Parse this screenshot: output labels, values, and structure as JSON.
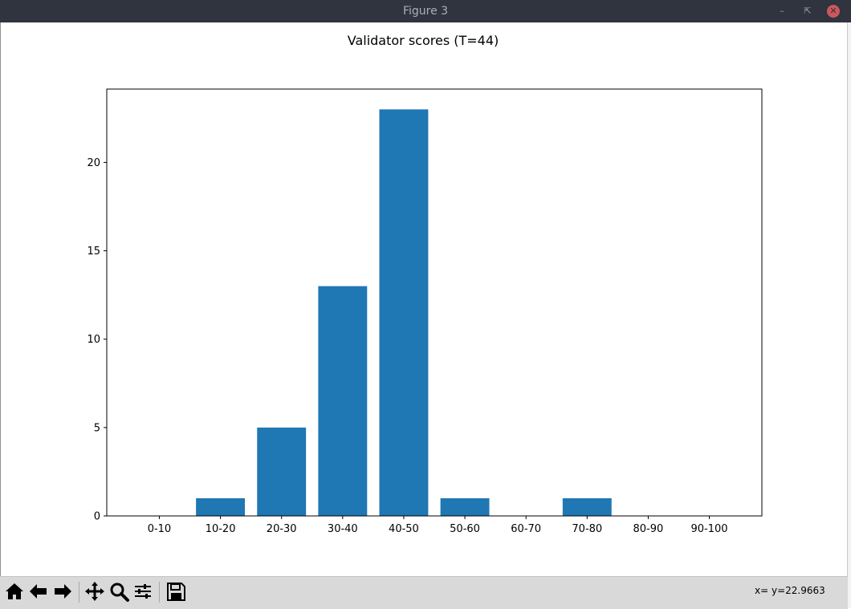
{
  "window": {
    "title": "Figure 3",
    "titlebar_color": "#2f343f",
    "close_color": "#cc575d"
  },
  "toolbar": {
    "buttons": [
      "home-icon",
      "back-arrow-icon",
      "forward-arrow-icon",
      "pan-icon",
      "zoom-icon",
      "configure-subplots-icon",
      "save-icon"
    ],
    "coordinates": "x= y=22.9663"
  },
  "chart_data": {
    "type": "bar",
    "title": "Validator scores (T=44)",
    "xlabel": "",
    "ylabel": "",
    "categories": [
      "0-10",
      "10-20",
      "20-30",
      "30-40",
      "40-50",
      "50-60",
      "60-70",
      "70-80",
      "80-90",
      "90-100"
    ],
    "values": [
      0,
      1,
      5,
      13,
      23,
      1,
      0,
      1,
      0,
      0
    ],
    "ylim": [
      0,
      24.15
    ],
    "yticks": [
      0,
      5,
      10,
      15,
      20
    ],
    "grid": false,
    "legend": "none",
    "bar_color": "#1f77b4"
  }
}
